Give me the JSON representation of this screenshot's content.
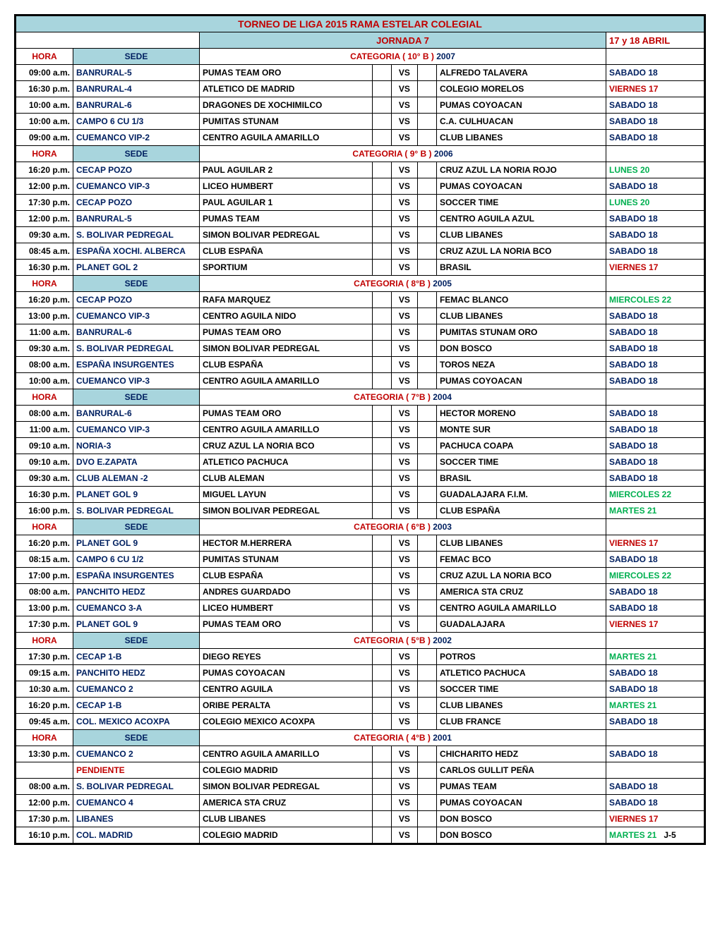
{
  "title": "TORNEO DE LIGA 2015  RAMA ESTELAR COLEGIAL",
  "jornada": "JORNADA 7",
  "fecha": "17 y 18 ABRIL",
  "hdr_hora": "HORA",
  "hdr_sede": "SEDE",
  "colors": {
    "header_bg": "#a8d5dd",
    "red": "#c00000",
    "navy": "#002060",
    "green": "#00b050",
    "black": "#000000"
  },
  "day_styles": {
    "SABADO 18": "day-sab",
    "VIERNES 17": "day-vie",
    "LUNES 20": "day-lun",
    "MIERCOLES 22": "day-mie",
    "MARTES 21": "day-mar",
    "": "day-none"
  },
  "sections": [
    {
      "cat_label": "CATEGORIA ( 10° B ) ",
      "cat_year": "2007",
      "rows": [
        {
          "hora": "09:00 a.m.",
          "sede": "BANRURAL-5",
          "t1": "PUMAS TEAM ORO",
          "t2": "ALFREDO TALAVERA",
          "day": "SABADO 18"
        },
        {
          "hora": "16:30 p.m.",
          "sede": "BANRURAL-4",
          "t1": "ATLETICO DE MADRID",
          "t2": "COLEGIO MORELOS",
          "day": "VIERNES 17"
        },
        {
          "hora": "10:00 a.m.",
          "sede": "BANRURAL-6",
          "t1": "DRAGONES DE XOCHIMILCO",
          "t2": "PUMAS COYOACAN",
          "day": "SABADO 18"
        },
        {
          "hora": "10:00 a.m.",
          "sede": "CAMPO 6 CU 1/3",
          "t1": "PUMITAS STUNAM",
          "t2": "C.A. CULHUACAN",
          "day": "SABADO 18"
        },
        {
          "hora": "09:00 a.m.",
          "sede": "CUEMANCO VIP-2",
          "t1": "CENTRO AGUILA AMARILLO",
          "t2": "CLUB LIBANES",
          "day": "SABADO 18"
        }
      ]
    },
    {
      "cat_label": "CATEGORIA ( 9° B ) ",
      "cat_year": "2006",
      "rows": [
        {
          "hora": "16:20 p.m.",
          "sede": "CECAP POZO",
          "t1": "PAUL AGUILAR 2",
          "t2": "CRUZ AZUL LA NORIA ROJO",
          "day": "LUNES 20"
        },
        {
          "hora": "12:00 p.m.",
          "sede": "CUEMANCO VIP-3",
          "t1": "LICEO HUMBERT",
          "t2": "PUMAS COYOACAN",
          "day": "SABADO 18"
        },
        {
          "hora": "17:30 p.m.",
          "sede": "CECAP POZO",
          "t1": "PAUL AGUILAR 1",
          "t2": "SOCCER TIME",
          "day": "LUNES 20"
        },
        {
          "hora": "12:00 p.m.",
          "sede": "BANRURAL-5",
          "t1": "PUMAS TEAM",
          "t2": "CENTRO AGUILA AZUL",
          "day": "SABADO 18"
        },
        {
          "hora": "09:30 a.m.",
          "sede": "S. BOLIVAR PEDREGAL",
          "t1": "SIMON BOLIVAR PEDREGAL",
          "t2": "CLUB LIBANES",
          "day": "SABADO 18"
        },
        {
          "hora": "08:45 a.m.",
          "sede": "ESPAÑA XOCHI. ALBERCA",
          "t1": "CLUB ESPAÑA",
          "t2": "CRUZ AZUL LA NORIA BCO",
          "day": "SABADO 18"
        },
        {
          "hora": "16:30 p.m.",
          "sede": "PLANET GOL 2",
          "t1": "SPORTIUM",
          "t2": "BRASIL",
          "day": "VIERNES 17"
        }
      ]
    },
    {
      "cat_label": "CATEGORIA (  8°B )  ",
      "cat_year": "2005",
      "rows": [
        {
          "hora": "16:20 p.m.",
          "sede": "CECAP POZO",
          "t1": "RAFA MARQUEZ",
          "t2": "FEMAC BLANCO",
          "day": "MIERCOLES 22"
        },
        {
          "hora": "13:00 p.m.",
          "sede": "CUEMANCO VIP-3",
          "t1": "CENTRO AGUILA NIDO",
          "t2": "CLUB LIBANES",
          "day": "SABADO 18"
        },
        {
          "hora": "11:00 a.m.",
          "sede": "BANRURAL-6",
          "t1": "PUMAS TEAM ORO",
          "t2": "PUMITAS STUNAM ORO",
          "day": "SABADO 18"
        },
        {
          "hora": "09:30 a.m.",
          "sede": "S. BOLIVAR PEDREGAL",
          "t1": "SIMON BOLIVAR PEDREGAL",
          "t2": "DON BOSCO",
          "day": "SABADO 18"
        },
        {
          "hora": "08:00 a.m.",
          "sede": "ESPAÑA INSURGENTES",
          "t1": "CLUB ESPAÑA",
          "t2": "TOROS NEZA",
          "day": "SABADO 18"
        },
        {
          "hora": "10:00 a.m.",
          "sede": "CUEMANCO VIP-3",
          "t1": "CENTRO AGUILA AMARILLO",
          "t2": "PUMAS COYOACAN",
          "day": "SABADO 18"
        }
      ]
    },
    {
      "cat_label": "CATEGORIA (  7°B )  ",
      "cat_year": "2004",
      "rows": [
        {
          "hora": "08:00 a.m.",
          "sede": "BANRURAL-6",
          "t1": "PUMAS TEAM ORO",
          "t2": "HECTOR MORENO",
          "day": "SABADO 18"
        },
        {
          "hora": "11:00 a.m.",
          "sede": "CUEMANCO VIP-3",
          "t1": "CENTRO AGUILA AMARILLO",
          "t2": "MONTE SUR",
          "day": "SABADO 18"
        },
        {
          "hora": "09:10 a.m.",
          "sede": "NORIA-3",
          "t1": "CRUZ AZUL LA NORIA BCO",
          "t2": "PACHUCA COAPA",
          "day": "SABADO 18"
        },
        {
          "hora": "09:10 a.m.",
          "sede": "DVO E.ZAPATA",
          "t1": "ATLETICO PACHUCA",
          "t2": "SOCCER TIME",
          "day": "SABADO 18"
        },
        {
          "hora": "09:30 a.m.",
          "sede": "CLUB ALEMAN -2",
          "t1": "CLUB ALEMAN",
          "t2": "BRASIL",
          "day": "SABADO 18"
        },
        {
          "hora": "16:30 p.m.",
          "sede": "PLANET GOL 9",
          "t1": "MIGUEL LAYUN",
          "t2": "GUADALAJARA F.I.M.",
          "day": "MIERCOLES 22"
        },
        {
          "hora": "16:00 p.m.",
          "sede": "S. BOLIVAR PEDREGAL",
          "t1": "SIMON BOLIVAR PEDREGAL",
          "t2": "CLUB ESPAÑA",
          "day": "MARTES 21"
        }
      ]
    },
    {
      "cat_label": "CATEGORIA (  6°B )  ",
      "cat_year": "2003",
      "rows": [
        {
          "hora": "16:20 p.m.",
          "sede": "PLANET GOL 9",
          "t1": "HECTOR M.HERRERA",
          "t2": "CLUB LIBANES",
          "day": "VIERNES 17"
        },
        {
          "hora": "08:15 a.m.",
          "sede": "CAMPO 6 CU 1/2",
          "t1": "PUMITAS STUNAM",
          "t2": "FEMAC BCO",
          "day": "SABADO 18"
        },
        {
          "hora": "17:00 p.m.",
          "sede": "ESPAÑA INSURGENTES",
          "t1": "CLUB ESPAÑA",
          "t2": "CRUZ AZUL LA NORIA BCO",
          "day": "MIERCOLES 22"
        },
        {
          "hora": "08:00 a.m.",
          "sede": "PANCHITO HEDZ",
          "t1": "ANDRES GUARDADO",
          "t2": "AMERICA STA CRUZ",
          "day": "SABADO 18"
        },
        {
          "hora": "13:00 p.m.",
          "sede": "CUEMANCO 3-A",
          "t1": "LICEO HUMBERT",
          "t2": "CENTRO AGUILA AMARILLO",
          "day": "SABADO 18"
        },
        {
          "hora": "17:30 p.m.",
          "sede": "PLANET GOL 9",
          "t1": "PUMAS TEAM ORO",
          "t2": "GUADALAJARA",
          "day": "VIERNES 17"
        }
      ]
    },
    {
      "cat_label": "CATEGORIA (  5°B )  ",
      "cat_year": "2002",
      "rows": [
        {
          "hora": "17:30 p.m.",
          "sede": "CECAP 1-B",
          "t1": "DIEGO REYES",
          "t2": "POTROS",
          "day": "MARTES 21"
        },
        {
          "hora": "09:15 a.m.",
          "sede": "PANCHITO HEDZ",
          "t1": "PUMAS COYOACAN",
          "t2": "ATLETICO PACHUCA",
          "day": "SABADO 18"
        },
        {
          "hora": "10:30 a.m.",
          "sede": "CUEMANCO 2",
          "t1": "CENTRO AGUILA",
          "t2": "SOCCER TIME",
          "day": "SABADO 18"
        },
        {
          "hora": "16:20 p.m.",
          "sede": "CECAP 1-B",
          "t1": "ORIBE PERALTA",
          "t2": "CLUB LIBANES",
          "day": "MARTES 21"
        },
        {
          "hora": "09:45 a.m.",
          "sede": "COL. MEXICO ACOXPA",
          "t1": "COLEGIO MEXICO ACOXPA",
          "t2": "CLUB FRANCE",
          "day": "SABADO 18"
        }
      ]
    },
    {
      "cat_label": "CATEGORIA (  4°B ) ",
      "cat_year": "2001",
      "rows": [
        {
          "hora": "13:30 p.m.",
          "sede": "CUEMANCO 2",
          "t1": "CENTRO AGUILA AMARILLO",
          "t2": "CHICHARITO HEDZ",
          "day": "SABADO 18"
        },
        {
          "hora": "",
          "sede": "PENDIENTE",
          "sede_color": "#c00000",
          "t1": "COLEGIO MADRID",
          "t2": "CARLOS GULLIT PEÑA",
          "day": ""
        },
        {
          "hora": "08:00 a.m.",
          "sede": "S. BOLIVAR PEDREGAL",
          "t1": "SIMON BOLIVAR PEDREGAL",
          "t2": "PUMAS TEAM",
          "day": "SABADO 18"
        },
        {
          "hora": "12:00 p.m.",
          "sede": "CUEMANCO 4",
          "t1": "AMERICA STA CRUZ",
          "t2": "PUMAS COYOACAN",
          "day": "SABADO 18"
        },
        {
          "hora": "17:30 p.m.",
          "sede": "LIBANES",
          "t1": "CLUB LIBANES",
          "t2": "DON BOSCO",
          "day": "VIERNES 17"
        },
        {
          "hora": "16:10 p.m.",
          "sede": "COL. MADRID",
          "t1": "COLEGIO MADRID",
          "t2": "DON BOSCO",
          "day": "MARTES 21",
          "day_suffix": "J-5"
        }
      ]
    }
  ]
}
